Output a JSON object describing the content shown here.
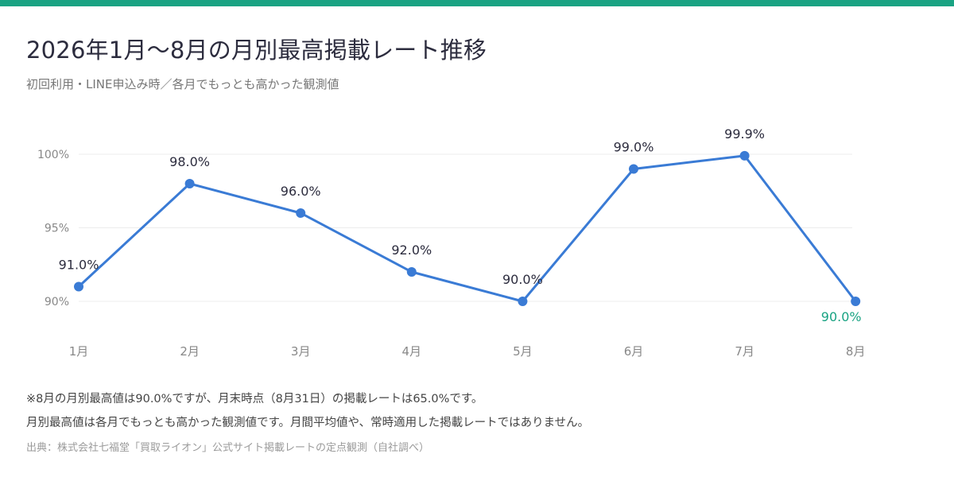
{
  "title": "2026年1月〜8月の月別最高掲載レート推移",
  "subtitle": "初回利用・LINE申込み時／各月でもっとも高かった観測値",
  "colors": {
    "accent": "#1aa383",
    "line": "#3a7bd5",
    "highlight_label": "#1aa383",
    "text": "#2c2c3e",
    "axis_text": "#888888",
    "grid": "#ececec"
  },
  "chart_data": {
    "type": "line",
    "title": "2026年1月〜8月の月別最高掲載レート推移",
    "categories": [
      "1月",
      "2月",
      "3月",
      "4月",
      "5月",
      "6月",
      "7月",
      "8月"
    ],
    "values": [
      91.0,
      98.0,
      96.0,
      92.0,
      90.0,
      99.0,
      99.9,
      90.0
    ],
    "data_labels": [
      "91.0%",
      "98.0%",
      "96.0%",
      "92.0%",
      "90.0%",
      "99.0%",
      "99.9%",
      "90.0%"
    ],
    "highlight_index": 7,
    "y_ticks": [
      90,
      95,
      100
    ],
    "y_tick_labels": [
      "90%",
      "95%",
      "100%"
    ],
    "ylim": [
      90,
      100
    ],
    "grid": true,
    "legend": false
  },
  "notes": {
    "line1": "※8月の月別最高値は90.0%ですが、月末時点（8月31日）の掲載レートは65.0%です。",
    "line2": "月別最高値は各月でもっとも高かった観測値です。月間平均値や、常時適用した掲載レートではありません。",
    "source": "出典：株式会社七福堂「買取ライオン」公式サイト掲載レートの定点観測（自社調べ）"
  }
}
